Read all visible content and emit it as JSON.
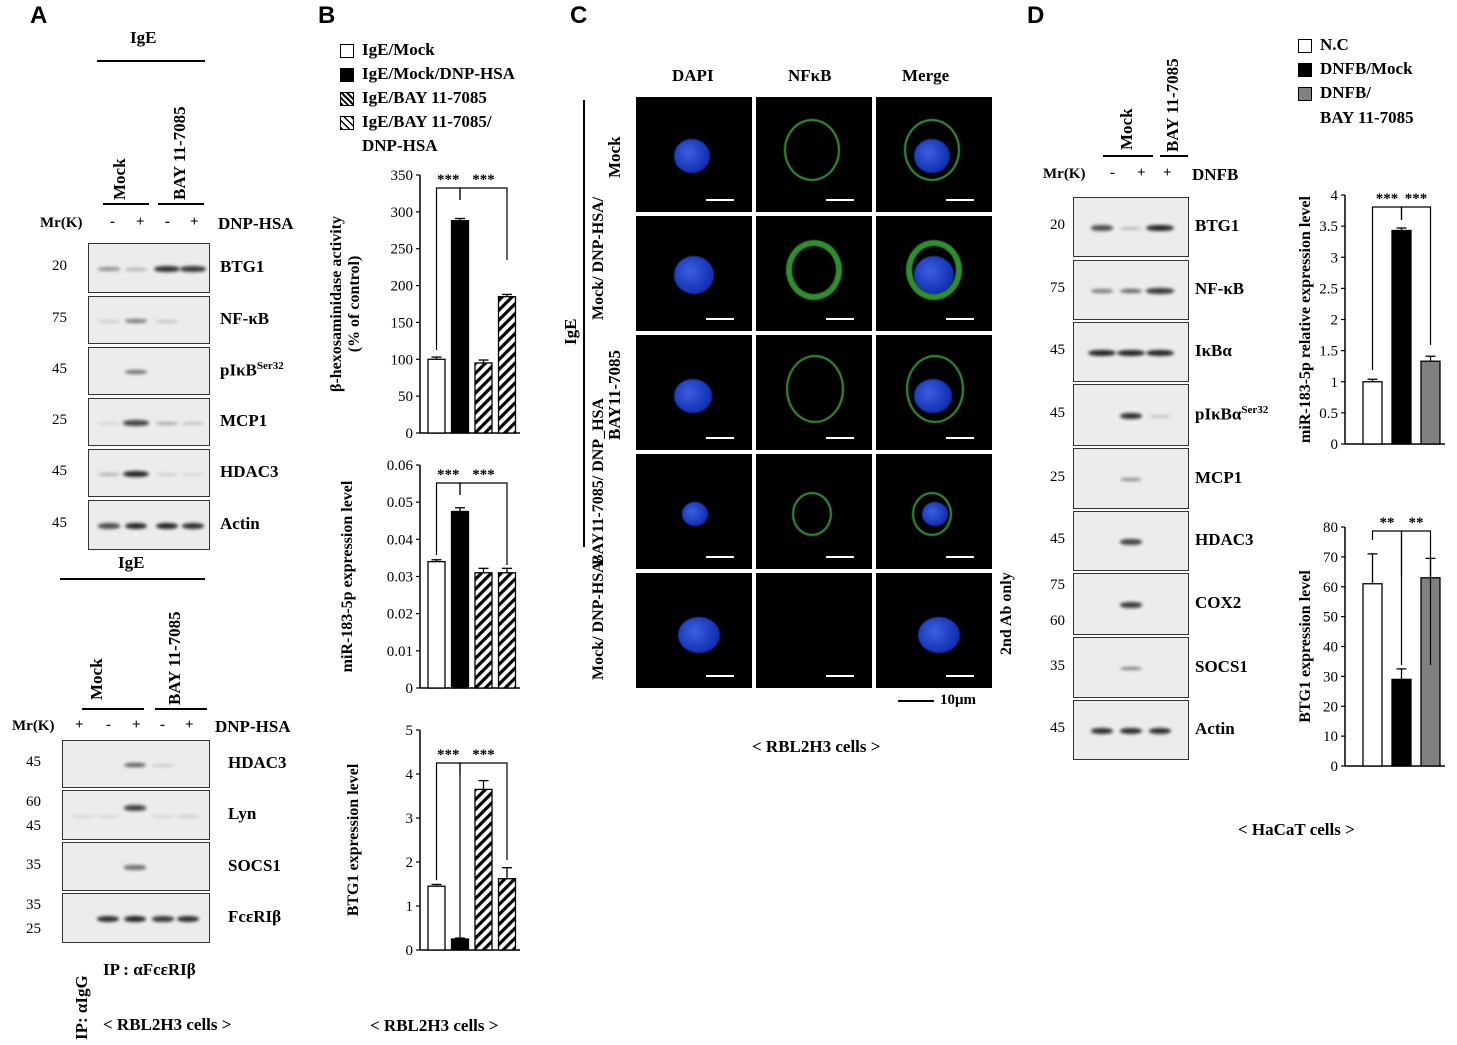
{
  "panels": {
    "A": {
      "letter": "A",
      "top_group": "IgE",
      "col_mock": "Mock",
      "col_bay": "BAY 11-7085",
      "mr_label": "Mr(K)",
      "signs": [
        "-",
        "+",
        "-",
        "+"
      ],
      "treatment": "DNP-HSA",
      "blots": [
        {
          "marker": "20",
          "label": "BTG1"
        },
        {
          "marker": "75",
          "label": "NF-κB"
        },
        {
          "marker": "45",
          "label": "pIκB Ser32"
        },
        {
          "marker": "25",
          "label": "MCP1"
        },
        {
          "marker": "45",
          "label": "HDAC3"
        },
        {
          "marker": "45",
          "label": "Actin"
        }
      ],
      "ip_group": "IgE",
      "ip_col_mock": "Mock",
      "ip_col_bay": "BAY 11-7085",
      "ip_signs": [
        "+",
        "-",
        "+",
        "-",
        "+"
      ],
      "ip_treatment": "DNP-HSA",
      "ip_blots": [
        {
          "marker": "45",
          "label": "HDAC3"
        },
        {
          "marker": "60",
          "marker2": "45",
          "label": "Lyn"
        },
        {
          "marker": "35",
          "label": "SOCS1"
        },
        {
          "marker": "35",
          "marker2": "25",
          "label": "FcεRIβ"
        }
      ],
      "ip_igg": "IP: αIgG",
      "ip_fc": "IP : αFcεRIβ",
      "cells": "< RBL2H3 cells >"
    },
    "B": {
      "letter": "B",
      "legend": [
        "IgE/Mock",
        "IgE/Mock/DNP-HSA",
        "IgE/BAY 11-7085",
        "IgE/BAY 11-7085/",
        "DNP-HSA"
      ],
      "cells": "< RBL2H3 cells >"
    },
    "C": {
      "letter": "C",
      "columns": [
        "DAPI",
        "NFκB",
        "Merge"
      ],
      "rows": [
        "Mock",
        "Mock/ DNP-HSA/",
        "BAY11-7085",
        "BAY11-7085/ DNP_HSA",
        "Mock/ DNP-HSA/"
      ],
      "side_group": "IgE",
      "second_ab": "2nd Ab only",
      "scale": "10μm",
      "cells": "< RBL2H3 cells >"
    },
    "D": {
      "letter": "D",
      "col_mock": "Mock",
      "col_bay": "BAY 11-7085",
      "mr_label": "Mr(K)",
      "signs": [
        "-",
        "+",
        "+"
      ],
      "treatment": "DNFB",
      "blots": [
        {
          "marker": "20",
          "label": "BTG1"
        },
        {
          "marker": "75",
          "label": "NF-κB"
        },
        {
          "marker": "45",
          "label": "IκBα"
        },
        {
          "marker": "45",
          "label": "pIκBαSer32"
        },
        {
          "marker": "25",
          "label": "MCP1"
        },
        {
          "marker": "45",
          "label": "HDAC3"
        },
        {
          "marker": "75",
          "marker2": "60",
          "label": "COX2"
        },
        {
          "marker": "35",
          "label": "SOCS1"
        },
        {
          "marker": "45",
          "label": "Actin"
        }
      ],
      "legend": [
        "N.C",
        "DNFB/Mock",
        "DNFB/",
        "BAY 11-7085"
      ],
      "cells": "< HaCaT cells >"
    }
  },
  "chart_data": [
    {
      "type": "bar",
      "id": "B-hexosaminidase",
      "categories": [
        "IgE/Mock",
        "IgE/Mock/DNP-HSA",
        "IgE/BAY 11-7085",
        "IgE/BAY 11-7085/DNP-HSA"
      ],
      "values": [
        100,
        288,
        95,
        185
      ],
      "errors": [
        3,
        3,
        4,
        3
      ],
      "ylabel": "β-hexosaminidase activity (% of control)",
      "ylim": [
        0,
        350
      ],
      "yticks": [
        "0",
        "50",
        "100",
        "150",
        "200",
        "250",
        "300",
        "350"
      ],
      "significance": [
        "***",
        "***"
      ],
      "fills": [
        "#ffffff",
        "#000000",
        "hatch",
        "hatch"
      ]
    },
    {
      "type": "bar",
      "id": "B-miR183",
      "categories": [
        "IgE/Mock",
        "IgE/Mock/DNP-HSA",
        "IgE/BAY 11-7085",
        "IgE/BAY 11-7085/DNP-HSA"
      ],
      "values": [
        0.034,
        0.0475,
        0.031,
        0.031
      ],
      "errors": [
        0.0005,
        0.001,
        0.0012,
        0.0012
      ],
      "ylabel": "miR-183-5p expression level",
      "ylim": [
        0,
        0.06
      ],
      "yticks": [
        "0",
        "0.01",
        "0.02",
        "0.03",
        "0.04",
        "0.05",
        "0.06"
      ],
      "significance": [
        "***",
        "***"
      ],
      "fills": [
        "#ffffff",
        "#000000",
        "hatch",
        "hatch"
      ]
    },
    {
      "type": "bar",
      "id": "B-BTG1",
      "categories": [
        "IgE/Mock",
        "IgE/Mock/DNP-HSA",
        "IgE/BAY 11-7085",
        "IgE/BAY 11-7085/DNP-HSA"
      ],
      "values": [
        1.45,
        0.25,
        3.65,
        1.62
      ],
      "errors": [
        0.04,
        0.02,
        0.2,
        0.25
      ],
      "ylabel": "BTG1 expression level",
      "ylim": [
        0,
        5
      ],
      "yticks": [
        "0",
        "1",
        "2",
        "3",
        "4",
        "5"
      ],
      "significance": [
        "***",
        "***"
      ],
      "fills": [
        "#ffffff",
        "#000000",
        "hatch",
        "hatch"
      ]
    },
    {
      "type": "bar",
      "id": "D-miR183",
      "categories": [
        "N.C",
        "DNFB/Mock",
        "DNFB/BAY 11-7085"
      ],
      "values": [
        1.0,
        3.43,
        1.33
      ],
      "errors": [
        0.04,
        0.04,
        0.08
      ],
      "ylabel": "miR-183-5p relative expression level",
      "ylim": [
        0,
        4
      ],
      "yticks": [
        "0",
        "0.5",
        "1",
        "1.5",
        "2",
        "2.5",
        "3",
        "3.5",
        "4"
      ],
      "significance": [
        "***",
        "***"
      ],
      "fills": [
        "#ffffff",
        "#000000",
        "#808080"
      ]
    },
    {
      "type": "bar",
      "id": "D-BTG1",
      "categories": [
        "N.C",
        "DNFB/Mock",
        "DNFB/BAY 11-7085"
      ],
      "values": [
        61,
        29,
        63
      ],
      "errors": [
        10,
        3.5,
        6.5
      ],
      "ylabel": "BTG1 expression level",
      "ylim": [
        0,
        80
      ],
      "yticks": [
        "0",
        "10",
        "20",
        "30",
        "40",
        "50",
        "60",
        "70",
        "80"
      ],
      "significance": [
        "**",
        "**"
      ],
      "fills": [
        "#ffffff",
        "#000000",
        "#808080"
      ]
    }
  ]
}
